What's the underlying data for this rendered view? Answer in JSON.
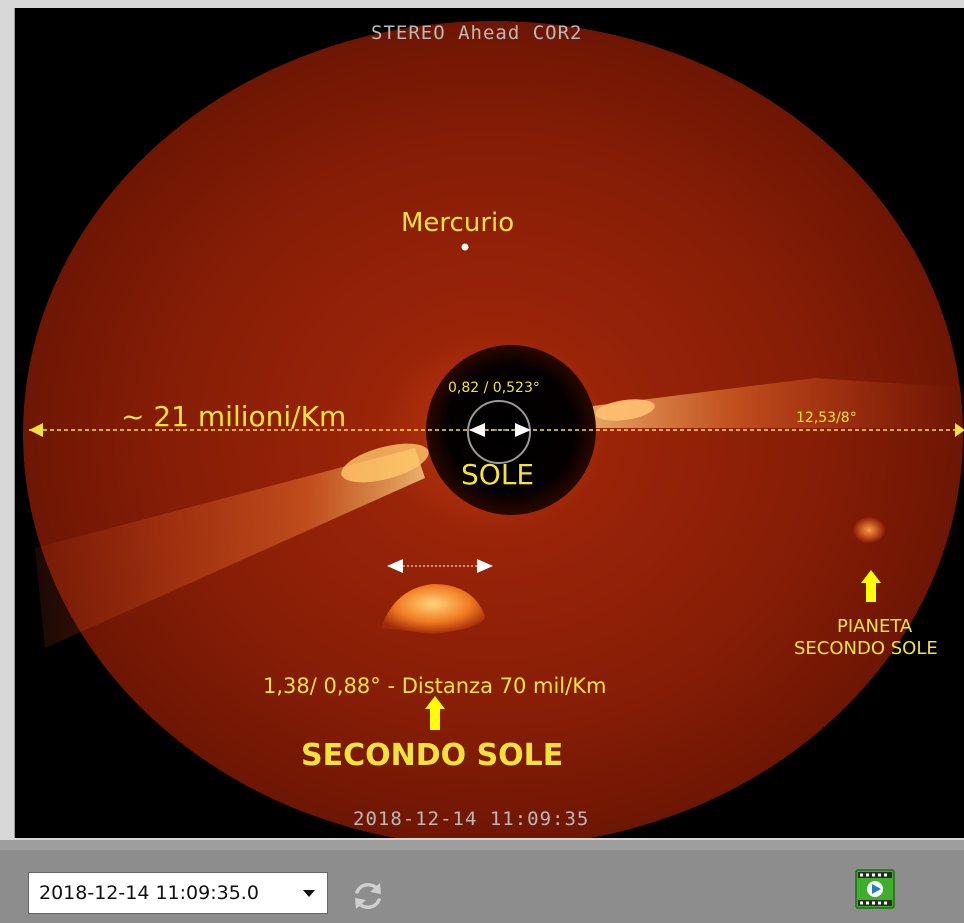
{
  "viewer": {
    "instrument_label": "STEREO Ahead COR2",
    "timestamp_label": "2018-12-14 11:09:35"
  },
  "annotations": {
    "mercurio": "Mercurio",
    "distance_label": "~ 21 milioni/Km",
    "sun_size": "0,82 / 0,523°",
    "sole": "SOLE",
    "right_measure": "12,53/8°",
    "secondo_sole_measure": "1,38/ 0,88° - Distanza 70 mil/Km",
    "secondo_sole": "SECONDO SOLE",
    "pianeta_line1": "PIANETA",
    "pianeta_line2": "SECONDO SOLE"
  },
  "toolbar": {
    "date_value": "2018-12-14 11:09:35.0",
    "dropdown_icon": "chevron-down-icon",
    "refresh_icon": "refresh-icon",
    "movie_icon": "movie-icon"
  },
  "colors": {
    "annotation_yellow": "#f3e23a",
    "arrow_yellow": "#ffff00",
    "corona_red": "#8a1a06"
  }
}
